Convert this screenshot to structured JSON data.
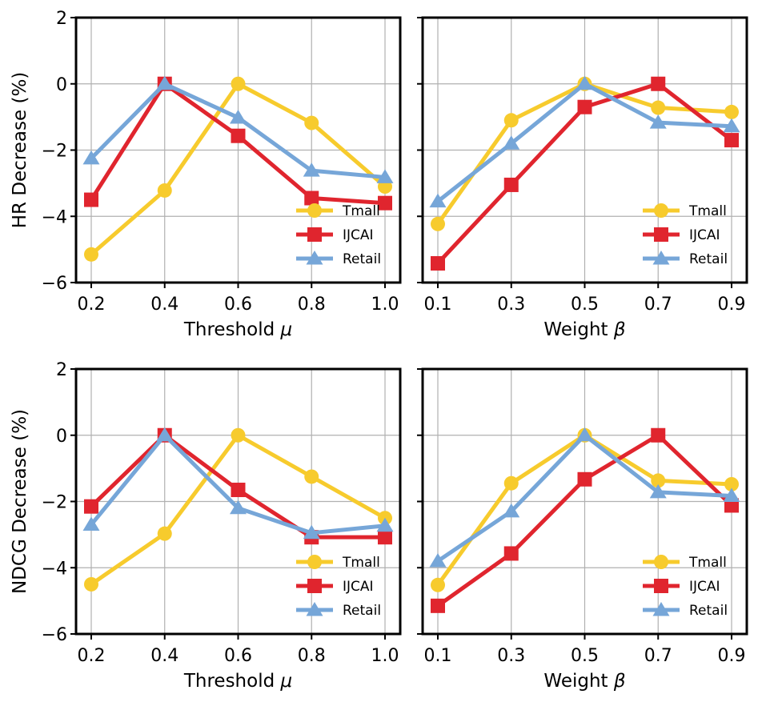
{
  "series_styles": [
    {
      "name": "Tmall",
      "color": "#F7CB2D",
      "marker": "circle"
    },
    {
      "name": "IJCAI",
      "color": "#E0252E",
      "marker": "square"
    },
    {
      "name": "Retail",
      "color": "#76A6D8",
      "marker": "triangle"
    }
  ],
  "chart_data": [
    {
      "type": "line",
      "id": "hr-threshold",
      "categories": [
        "0.2",
        "0.4",
        "0.6",
        "0.8",
        "1.0"
      ],
      "xlabel_text": "Threshold ",
      "xlabel_symbol": "μ",
      "ylabel": "HR Decrease (%)",
      "ylim": [
        -6,
        2
      ],
      "yticks": [
        "−6",
        "−4",
        "−2",
        "0",
        "2"
      ],
      "ytick_values": [
        -6,
        -4,
        -2,
        0,
        2
      ],
      "grid": true,
      "legend": "bottom-right",
      "series": [
        {
          "name": "Tmall",
          "values": [
            -5.15,
            -3.22,
            0.0,
            -1.18,
            -3.1
          ]
        },
        {
          "name": "IJCAI",
          "values": [
            -3.5,
            0.0,
            -1.57,
            -3.45,
            -3.6
          ]
        },
        {
          "name": "Retail",
          "values": [
            -2.25,
            0.0,
            -1.02,
            -2.62,
            -2.82
          ]
        }
      ]
    },
    {
      "type": "line",
      "id": "hr-weight",
      "categories": [
        "0.1",
        "0.3",
        "0.5",
        "0.7",
        "0.9"
      ],
      "xlabel_text": "Weight ",
      "xlabel_symbol": "β",
      "ylabel": "",
      "ylim": [
        -6,
        2
      ],
      "yticks": [],
      "ytick_values": [
        -6,
        -4,
        -2,
        0,
        2
      ],
      "grid": true,
      "legend": "bottom-right",
      "series": [
        {
          "name": "Tmall",
          "values": [
            -4.23,
            -1.1,
            0.0,
            -0.72,
            -0.85
          ]
        },
        {
          "name": "IJCAI",
          "values": [
            -5.42,
            -3.05,
            -0.7,
            0.0,
            -1.7
          ]
        },
        {
          "name": "Retail",
          "values": [
            -3.55,
            -1.8,
            0.0,
            -1.17,
            -1.28
          ]
        }
      ]
    },
    {
      "type": "line",
      "id": "ndcg-threshold",
      "categories": [
        "0.2",
        "0.4",
        "0.6",
        "0.8",
        "1.0"
      ],
      "xlabel_text": "Threshold ",
      "xlabel_symbol": "μ",
      "ylabel": "NDCG Decrease (%)",
      "ylim": [
        -6,
        2
      ],
      "yticks": [
        "−6",
        "−4",
        "−2",
        "0",
        "2"
      ],
      "ytick_values": [
        -6,
        -4,
        -2,
        0,
        2
      ],
      "grid": true,
      "legend": "bottom-right",
      "series": [
        {
          "name": "Tmall",
          "values": [
            -4.5,
            -2.97,
            0.0,
            -1.25,
            -2.5
          ]
        },
        {
          "name": "IJCAI",
          "values": [
            -2.15,
            0.0,
            -1.65,
            -3.08,
            -3.08
          ]
        },
        {
          "name": "Retail",
          "values": [
            -2.7,
            0.0,
            -2.2,
            -2.95,
            -2.73
          ]
        }
      ]
    },
    {
      "type": "line",
      "id": "ndcg-weight",
      "categories": [
        "0.1",
        "0.3",
        "0.5",
        "0.7",
        "0.9"
      ],
      "xlabel_text": "Weight ",
      "xlabel_symbol": "β",
      "ylabel": "",
      "ylim": [
        -6,
        2
      ],
      "yticks": [],
      "ytick_values": [
        -6,
        -4,
        -2,
        0,
        2
      ],
      "grid": true,
      "legend": "bottom-right",
      "series": [
        {
          "name": "Tmall",
          "values": [
            -4.52,
            -1.45,
            0.0,
            -1.37,
            -1.48
          ]
        },
        {
          "name": "IJCAI",
          "values": [
            -5.15,
            -3.57,
            -1.33,
            0.0,
            -2.12
          ]
        },
        {
          "name": "Retail",
          "values": [
            -3.8,
            -2.3,
            0.0,
            -1.72,
            -1.83
          ]
        }
      ]
    }
  ]
}
